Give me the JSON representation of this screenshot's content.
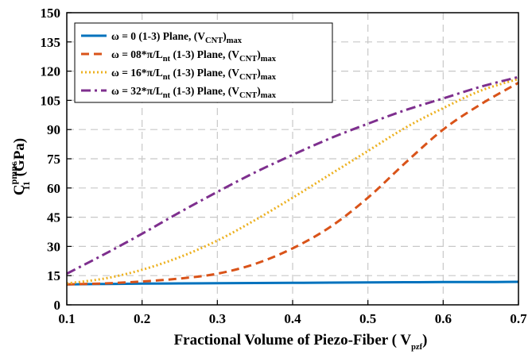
{
  "chart_data": {
    "type": "line",
    "xlabel": "Fractional Volume of Piezo-Fiber ( V",
    "xlabel_sub": "pzf",
    "xlabel_end": ")",
    "ylabel_main": "C",
    "ylabel_sup": "pmnc",
    "ylabel_sub": "11",
    "ylabel_unit": "(GPa)",
    "xlim": [
      0.1,
      0.7
    ],
    "ylim": [
      0,
      150
    ],
    "xticks": [
      "0.1",
      "0.2",
      "0.3",
      "0.4",
      "0.5",
      "0.6",
      "0.7"
    ],
    "yticks": [
      "0",
      "15",
      "30",
      "45",
      "60",
      "75",
      "90",
      "105",
      "120",
      "135",
      "150"
    ],
    "grid": true,
    "legend_position": "top-left",
    "x": [
      0.1,
      0.15,
      0.2,
      0.25,
      0.3,
      0.35,
      0.4,
      0.45,
      0.5,
      0.55,
      0.6,
      0.65,
      0.7
    ],
    "series": [
      {
        "name": "ω = 0 (1-3) Plane, (V",
        "name_sub": "CNT",
        "name_end": ")",
        "name_end_sub": "max",
        "color": "#0072BD",
        "dash": "solid",
        "values": [
          10.5,
          10.7,
          10.9,
          11.0,
          11.1,
          11.2,
          11.3,
          11.4,
          11.5,
          11.6,
          11.7,
          11.7,
          11.8
        ]
      },
      {
        "name": "ω = 08*π/L",
        "name_sub": "nt",
        "name_mid": " (1-3) Plane, (V",
        "name_sub2": "CNT",
        "name_end": ")",
        "name_end_sub": "max",
        "color": "#D95319",
        "dash": "dashed",
        "values": [
          10.5,
          11.0,
          12.0,
          13.5,
          16.0,
          21.0,
          29.0,
          40.0,
          55.0,
          73.0,
          90.0,
          103.0,
          114.0
        ]
      },
      {
        "name": "ω = 16*π/L",
        "name_sub": "nt",
        "name_mid": " (1-3) Plane, (V",
        "name_sub2": "CNT",
        "name_end": ")",
        "name_end_sub": "max",
        "color": "#EDB120",
        "dash": "dotted",
        "values": [
          11.0,
          13.5,
          18.0,
          24.5,
          33.0,
          43.5,
          55.0,
          67.0,
          79.0,
          91.0,
          101.0,
          110.0,
          116.0
        ]
      },
      {
        "name": "ω = 32*π/L",
        "name_sub": "nt",
        "name_mid": " (1-3) Plane, (V",
        "name_sub2": "CNT",
        "name_end": ")",
        "name_end_sub": "max",
        "color": "#7E2F8E",
        "dash": "dashdot",
        "values": [
          16.0,
          26.0,
          36.5,
          47.5,
          58.0,
          68.0,
          77.0,
          85.5,
          93.0,
          100.0,
          106.0,
          112.0,
          117.0
        ]
      }
    ]
  }
}
